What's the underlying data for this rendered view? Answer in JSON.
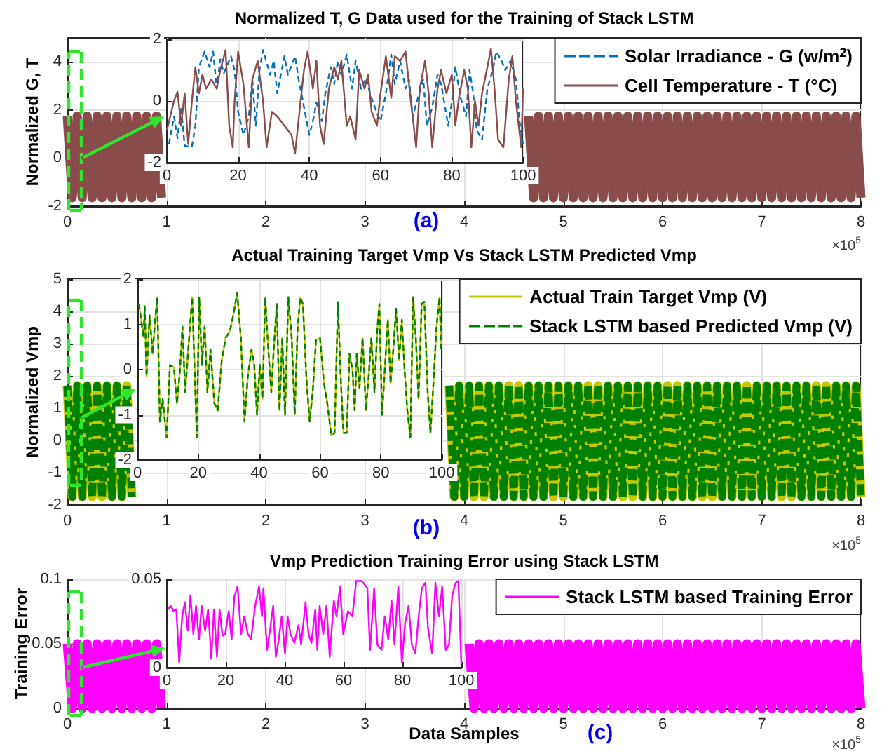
{
  "chart_data": [
    {
      "type": "line",
      "title": "Normalized T, G Data used for the Training of Stack LSTM",
      "ylabel": "Normalized G, T",
      "xlim": [
        0,
        8
      ],
      "xticks": [
        0,
        1,
        2,
        3,
        4,
        5,
        6,
        7,
        8
      ],
      "ylim": [
        -2,
        5
      ],
      "yticks": [
        -2,
        0,
        2,
        4
      ],
      "grid": true,
      "legend": "top right",
      "annotations": [
        "×10$^{5}$",
        "(a)"
      ],
      "x": [
        0,
        0.05,
        0.1,
        0.15,
        0.2,
        0.25,
        0.3,
        0.35,
        0.4,
        0.45,
        0.5,
        0.55,
        0.6,
        0.65,
        0.7,
        0.75,
        0.8,
        0.85,
        0.9,
        0.95,
        2.8,
        4.65,
        4.7,
        4.75,
        4.8,
        4.85,
        4.9,
        4.95,
        5,
        5.05,
        5.1,
        5.15,
        5.2,
        5.25,
        5.3,
        5.35,
        5.4,
        5.45,
        5.5,
        5.55,
        5.6,
        5.65,
        5.7,
        5.75,
        5.8,
        5.85,
        5.9,
        5.95,
        6,
        6.05,
        6.1,
        6.15,
        6.2,
        6.25,
        6.3,
        6.35,
        6.4,
        6.45,
        6.5,
        6.55,
        6.6,
        6.65,
        6.7,
        6.75,
        6.8,
        6.85,
        6.9,
        6.95,
        7,
        7.05,
        7.1,
        7.15,
        7.2,
        7.25,
        7.3,
        7.35,
        7.4,
        7.45,
        7.5,
        7.55,
        7.6,
        7.65,
        7.7,
        7.75,
        7.8,
        7.85,
        7.9,
        7.95,
        8
      ],
      "series": [
        {
          "name": "Solar Irradiance - G (w/m$^{2}$)",
          "color": "#0072bd",
          "line_style": "dashed",
          "values": [
            null,
            null,
            null,
            null,
            null,
            null,
            null,
            null,
            null,
            null,
            null,
            null,
            null,
            null,
            null,
            null,
            null,
            null,
            null,
            null,
            null,
            null,
            null,
            null,
            null,
            null,
            null,
            null,
            null,
            null,
            null,
            null,
            null,
            null,
            null,
            null,
            null,
            null,
            null,
            null,
            null,
            null,
            null,
            null,
            null,
            null,
            null,
            null,
            null,
            null,
            null,
            null,
            null,
            null,
            null,
            null,
            null,
            null,
            null,
            null,
            null,
            null,
            null,
            null,
            null,
            null,
            null,
            null,
            null,
            null,
            null,
            null,
            null,
            null,
            null,
            null,
            null,
            null,
            null,
            null,
            null,
            null,
            null,
            null,
            null,
            null,
            null,
            null,
            null
          ]
        },
        {
          "name": "Cell Temperature - T (°C)",
          "color": "#8a4b4b",
          "line_style": "solid",
          "values": [
            1.75,
            -1.65,
            1.75,
            -1.65,
            1.75,
            -1.65,
            1.75,
            -1.65,
            1.75,
            -1.65,
            1.75,
            -1.65,
            1.75,
            -1.65,
            1.75,
            -1.65,
            1.75,
            -1.65,
            1.75,
            -1.65,
            null,
            1.75,
            -1.65,
            1.75,
            -1.65,
            1.75,
            -1.65,
            1.75,
            -1.65,
            1.75,
            -1.65,
            1.75,
            -1.65,
            1.75,
            -1.65,
            1.75,
            -1.65,
            1.75,
            -1.65,
            1.75,
            -1.65,
            1.75,
            -1.65,
            1.75,
            -1.65,
            1.75,
            -1.65,
            1.75,
            -1.65,
            1.75,
            -1.65,
            1.75,
            -1.65,
            1.75,
            -1.65,
            1.75,
            -1.65,
            1.75,
            -1.65,
            1.75,
            -1.65,
            1.75,
            -1.65,
            1.75,
            -1.65,
            1.75,
            -1.65,
            1.75,
            -1.65,
            1.75,
            -1.65,
            1.75,
            -1.65,
            1.75,
            -1.65,
            1.75,
            -1.65,
            1.75,
            -1.65,
            1.75,
            -1.65,
            1.75,
            -1.65,
            1.75,
            -1.65,
            1.75,
            -1.65,
            1.75,
            -1.65
          ]
        }
      ]
    },
    {
      "type": "line",
      "xlim": [
        0,
        100
      ],
      "xticks": [
        0,
        20,
        40,
        60,
        80,
        100
      ],
      "ylim": [
        -2,
        2
      ],
      "yticks": [
        -2,
        0,
        2
      ],
      "grid": true,
      "series": [
        {
          "color": "#0072bd",
          "line_style": "dashed",
          "x": [
            0.6,
            2,
            3,
            4,
            5,
            7,
            8,
            9,
            10.6,
            12,
            13,
            14,
            15,
            16,
            18,
            19,
            20,
            21.5,
            23,
            24,
            25,
            26,
            27,
            29,
            30,
            31,
            32,
            33,
            34,
            36,
            37,
            39,
            40,
            41,
            42,
            43.5,
            44.5,
            46,
            47,
            48,
            49,
            50.5,
            52,
            53,
            54.5,
            56,
            57,
            59,
            60,
            61.5,
            63,
            64,
            65.5,
            67,
            68,
            69,
            70.5,
            72,
            73,
            74.5,
            76,
            77,
            79,
            80,
            81,
            82.5,
            84,
            85,
            86,
            87,
            88.5,
            90,
            91.5,
            92.5,
            94,
            95,
            96.5,
            98,
            99,
            100
          ],
          "values": [
            -1.4,
            -0.5,
            -1.2,
            -0.2,
            -1.45,
            -1.5,
            -0.8,
            1.1,
            1.6,
            1.1,
            1.6,
            0.4,
            1.35,
            0.9,
            1.45,
            1.0,
            -0.35,
            -1.1,
            -0.5,
            0.7,
            -0.8,
            1.0,
            1.65,
            0.85,
            1.3,
            0.25,
            0.85,
            1.45,
            0.85,
            1.45,
            0.7,
            -0.5,
            -1.1,
            -0.65,
            -0.05,
            -0.65,
            0.25,
            1.1,
            0.55,
            1.3,
            0.85,
            1.5,
            0.4,
            1.3,
            0.4,
            0.75,
            0.25,
            -0.4,
            -0.65,
            0.25,
            1.5,
            0.55,
            1.3,
            0.4,
            0.7,
            -0.5,
            0.1,
            0.7,
            -0.8,
            -0.2,
            0.85,
            0.55,
            -0.8,
            -0.05,
            1.1,
            0.1,
            -0.5,
            1.0,
            0.25,
            -0.95,
            -1.25,
            0.4,
            1.0,
            1.6,
            1.3,
            1.0,
            1.3,
            0.7,
            -0.65,
            -1.4
          ]
        },
        {
          "color": "#8a4b4b",
          "line_style": "solid",
          "x": [
            0,
            2,
            3,
            4,
            5,
            6,
            7,
            8,
            9,
            10,
            11,
            12.5,
            14,
            15,
            16.5,
            17.5,
            18.5,
            19,
            20,
            21.5,
            23,
            24,
            25.5,
            27,
            28,
            29.5,
            31,
            33,
            35,
            36,
            37.5,
            38.5,
            39.5,
            41,
            42,
            43,
            44,
            45.5,
            47,
            48,
            49,
            50.5,
            51.5,
            53,
            54,
            55.5,
            56.5,
            57.5,
            59,
            60,
            61.5,
            63,
            64,
            65.5,
            67,
            68.5,
            70,
            71,
            72.5,
            73.5,
            74.5,
            76,
            77,
            78.5,
            80,
            81,
            82,
            83.5,
            84.5,
            85.5,
            86.5,
            87.5,
            88.5,
            90,
            91,
            92,
            93,
            94.5,
            96,
            97,
            98,
            99.5,
            100
          ],
          "values": [
            -0.95,
            0,
            0.3,
            -0.8,
            0.25,
            -1.4,
            -0.05,
            1.1,
            0.25,
            0.85,
            0.4,
            0.7,
            0.4,
            1.0,
            1.65,
            -0.8,
            -1.5,
            -0.05,
            1.6,
            0.55,
            -1.5,
            0.7,
            1.3,
            0,
            -1.5,
            -0.35,
            -0.5,
            -0.8,
            -1.1,
            -1.7,
            -0.05,
            1.0,
            1.6,
            0.4,
            1.3,
            -0.8,
            -1.4,
            0.4,
            1.1,
            0.7,
            1.3,
            -0.8,
            -0.5,
            -1.25,
            1.0,
            0.4,
            0.85,
            -0.35,
            -0.8,
            0.25,
            1.45,
            0.1,
            1.45,
            1.3,
            1.6,
            0,
            -1.5,
            0.4,
            1.3,
            0.25,
            -1.5,
            0.4,
            1.0,
            0.25,
            0.85,
            -0.8,
            0.1,
            1.0,
            0.4,
            -1.5,
            0,
            -0.8,
            0.25,
            1.1,
            1.7,
            0.4,
            -1.25,
            -1.5,
            0.7,
            1.45,
            0,
            -1.5,
            0.4
          ]
        }
      ]
    },
    {
      "type": "line",
      "title": "Actual Training Target Vmp Vs Stack LSTM Predicted Vmp",
      "ylabel": "Normalized Vmp",
      "xlim": [
        0,
        8
      ],
      "xticks": [
        0,
        1,
        2,
        3,
        4,
        5,
        6,
        7,
        8
      ],
      "ylim": [
        -2,
        5
      ],
      "yticks": [
        -2,
        -1,
        0,
        1,
        2,
        3,
        4,
        5
      ],
      "grid": true,
      "legend": "top right",
      "annotations": [
        "×10$^{5}$",
        "(b)"
      ],
      "x": [
        0,
        0.05,
        0.1,
        0.15,
        0.2,
        0.25,
        0.3,
        0.35,
        0.4,
        0.45,
        0.5,
        0.55,
        0.6,
        0.65,
        2.2,
        3.85,
        3.9,
        3.95,
        4,
        4.05,
        4.1,
        4.15,
        4.2,
        4.25,
        4.3,
        4.35,
        4.4,
        4.45,
        4.5,
        4.55,
        4.6,
        4.65,
        4.7,
        4.75,
        4.8,
        4.85,
        4.9,
        4.95,
        5,
        5.05,
        5.1,
        5.15,
        5.2,
        5.25,
        5.3,
        5.35,
        5.4,
        5.45,
        5.5,
        5.55,
        5.6,
        5.65,
        5.7,
        5.75,
        5.8,
        5.85,
        5.9,
        5.95,
        6,
        6.05,
        6.1,
        6.15,
        6.2,
        6.25,
        6.3,
        6.35,
        6.4,
        6.45,
        6.5,
        6.55,
        6.6,
        6.65,
        6.7,
        6.75,
        6.8,
        6.85,
        6.9,
        6.95,
        7,
        7.05,
        7.1,
        7.15,
        7.2,
        7.25,
        7.3,
        7.35,
        7.4,
        7.45,
        7.5,
        7.55,
        7.6,
        7.65,
        7.7,
        7.75,
        7.8,
        7.85,
        7.9,
        7.95,
        8
      ],
      "series": [
        {
          "name": "Actual Train Target Vmp (V)",
          "color": "#c8c800",
          "line_style": "solid",
          "values": [
            1.7,
            -1.75,
            1.7,
            -1.75,
            1.7,
            -1.75,
            1.7,
            -1.75,
            1.7,
            -1.75,
            1.7,
            -1.75,
            1.7,
            -1.75,
            null,
            1.7,
            -1.75,
            1.7,
            -1.75,
            1.7,
            -1.75,
            1.7,
            -1.75,
            1.7,
            -1.75,
            1.7,
            -1.75,
            1.7,
            -1.75,
            1.7,
            -1.75,
            1.7,
            -1.75,
            1.7,
            -1.75,
            1.7,
            -1.75,
            1.7,
            -1.75,
            1.7,
            -1.75,
            1.7,
            -1.75,
            1.7,
            -1.75,
            1.7,
            -1.75,
            1.7,
            -1.75,
            1.7,
            -1.75,
            1.7,
            -1.75,
            1.7,
            -1.75,
            1.7,
            -1.75,
            1.7,
            -1.75,
            1.7,
            -1.75,
            1.7,
            -1.75,
            1.7,
            -1.75,
            1.7,
            -1.75,
            1.7,
            -1.75,
            1.7,
            -1.75,
            1.7,
            -1.75,
            1.7,
            -1.75,
            1.7,
            -1.75,
            1.7,
            -1.75,
            1.7,
            -1.75,
            1.7,
            -1.75,
            1.7,
            -1.75,
            1.7,
            -1.75,
            1.7,
            -1.75,
            1.7,
            -1.75,
            1.7,
            -1.75,
            1.7,
            -1.75,
            1.7,
            -1.75,
            1.7,
            -1.75
          ]
        },
        {
          "name": "Stack LSTM based Predicted Vmp (V)",
          "color": "#008000",
          "line_style": "dashed",
          "values": [
            1.7,
            -1.75,
            1.7,
            -1.75,
            1.7,
            -1.75,
            1.7,
            -1.75,
            1.7,
            -1.75,
            1.7,
            -1.75,
            1.7,
            -1.75,
            null,
            1.7,
            -1.75,
            1.7,
            -1.75,
            1.7,
            -1.75,
            1.7,
            -1.75,
            1.7,
            -1.75,
            1.7,
            -1.75,
            1.7,
            -1.75,
            1.7,
            -1.75,
            1.7,
            -1.75,
            1.7,
            -1.75,
            1.7,
            -1.75,
            1.7,
            -1.75,
            1.7,
            -1.75,
            1.7,
            -1.75,
            1.7,
            -1.75,
            1.7,
            -1.75,
            1.7,
            -1.75,
            1.7,
            -1.75,
            1.7,
            -1.75,
            1.7,
            -1.75,
            1.7,
            -1.75,
            1.7,
            -1.75,
            1.7,
            -1.75,
            1.7,
            -1.75,
            1.7,
            -1.75,
            1.7,
            -1.75,
            1.7,
            -1.75,
            1.7,
            -1.75,
            1.7,
            -1.75,
            1.7,
            -1.75,
            1.7,
            -1.75,
            1.7,
            -1.75,
            1.7,
            -1.75,
            1.7,
            -1.75,
            1.7,
            -1.75,
            1.7,
            -1.75,
            1.7,
            -1.75,
            1.7,
            -1.75,
            1.7,
            -1.75,
            1.7,
            -1.75,
            1.7,
            -1.75,
            1.7,
            -1.75
          ]
        }
      ]
    },
    {
      "type": "line",
      "xlim": [
        0,
        100
      ],
      "xticks": [
        0,
        20,
        40,
        60,
        80,
        100
      ],
      "ylim": [
        -2,
        2
      ],
      "yticks": [
        -2,
        -1,
        0,
        1,
        2
      ],
      "grid": true,
      "x": [
        0.5,
        2,
        2.4,
        3,
        4,
        5,
        5.7,
        6.5,
        7.4,
        8.3,
        9.6,
        10.7,
        12,
        13,
        14,
        14.8,
        15.7,
        17,
        18,
        19,
        19.5,
        20.3,
        21.2,
        22.1,
        23,
        24,
        25.3,
        26.4,
        27.7,
        29,
        30.4,
        31.5,
        32.8,
        34,
        35.2,
        36.3,
        37.5,
        38.4,
        39.3,
        40.2,
        41.1,
        42,
        43,
        44,
        44.8,
        45.8,
        46.7,
        47.6,
        48.5,
        49.6,
        50.7,
        51.7,
        52.6,
        53.5,
        54.4,
        55.5,
        56.6,
        57.6,
        58.7,
        60,
        61.3,
        62.4,
        63.7,
        64.8,
        65.9,
        66.8,
        67.7,
        68.8,
        69.7,
        70.7,
        71.4,
        72.1,
        73,
        74,
        75.1,
        76,
        76.9,
        77.9,
        78.8,
        79.5,
        80.4,
        81.4,
        82.3,
        83.2,
        84.1,
        85,
        86,
        86.9,
        87.8,
        88.7,
        89.7,
        90.6,
        91.5,
        92.4,
        93.4,
        94.3,
        95.4,
        96.3,
        97.2,
        98.3,
        99.3,
        99.8
      ],
      "series": [
        {
          "color": "#c8c800",
          "line_style": "solid",
          "values": [
            1.46,
            0.72,
            1.4,
            -0.15,
            1.2,
            0.35,
            1.0,
            1.6,
            -1.15,
            -0.65,
            -1.5,
            0.1,
            0.05,
            -0.75,
            0,
            0.95,
            -0.5,
            0.7,
            1.6,
            -0.4,
            -1.5,
            1.6,
            0.1,
            0.95,
            -0.5,
            0.45,
            -0.75,
            -0.9,
            0.2,
            0.7,
            0.85,
            1.2,
            1.7,
            0.7,
            -1.15,
            -0.15,
            0.45,
            0.1,
            -1.0,
            0.1,
            -0.65,
            1.6,
            0.45,
            -0.5,
            0.45,
            1.45,
            -0.9,
            0.7,
            -1.0,
            1.6,
            0.7,
            -1.0,
            0.85,
            1.6,
            1.45,
            -0.15,
            -1.15,
            -0.5,
            0.65,
            0.7,
            -0.3,
            -0.75,
            -1.45,
            -1.4,
            1.5,
            -0.15,
            -1.4,
            -1.4,
            0.35,
            0,
            -0.9,
            0.35,
            -0.4,
            0.7,
            -0.9,
            -0.15,
            0.7,
            -0.5,
            0.85,
            1.45,
            -1.0,
            0.1,
            1.1,
            -0.3,
            0.45,
            1.35,
            0.2,
            1.1,
            0,
            -0.9,
            -1.5,
            1.6,
            0.7,
            -0.65,
            1.45,
            1.5,
            -0.5,
            -1.4,
            -0.4,
            0.95,
            1.6,
            0.45
          ]
        },
        {
          "color": "#008000",
          "line_style": "dashed",
          "values": [
            1.46,
            0.72,
            1.4,
            -0.15,
            1.2,
            0.35,
            1.0,
            1.6,
            -1.15,
            -0.65,
            -1.5,
            0.1,
            0.05,
            -0.75,
            0,
            0.95,
            -0.5,
            0.7,
            1.6,
            -0.4,
            -1.5,
            1.6,
            0.1,
            0.95,
            -0.5,
            0.45,
            -0.75,
            -0.9,
            0.2,
            0.7,
            0.85,
            1.2,
            1.7,
            0.7,
            -1.15,
            -0.15,
            0.45,
            0.1,
            -1.0,
            0.1,
            -0.65,
            1.6,
            0.45,
            -0.5,
            0.45,
            1.45,
            -0.9,
            0.7,
            -1.0,
            1.6,
            0.7,
            -1.0,
            0.85,
            1.6,
            1.45,
            -0.15,
            -1.15,
            -0.5,
            0.65,
            0.7,
            -0.3,
            -0.75,
            -1.45,
            -1.4,
            1.5,
            -0.15,
            -1.4,
            -1.4,
            0.35,
            0,
            -0.9,
            0.35,
            -0.4,
            0.7,
            -0.9,
            -0.15,
            0.7,
            -0.5,
            0.85,
            1.45,
            -1.0,
            0.1,
            1.1,
            -0.3,
            0.45,
            1.35,
            0.2,
            1.1,
            0,
            -0.9,
            -1.5,
            1.6,
            0.7,
            -0.65,
            1.45,
            1.5,
            -0.5,
            -1.4,
            -0.4,
            0.95,
            1.6,
            0.45
          ]
        }
      ]
    },
    {
      "type": "line",
      "title": "Vmp Prediction Training Error using Stack LSTM",
      "xlabel": "Data Samples",
      "ylabel": "Training Error",
      "xlim": [
        0,
        8
      ],
      "xticks": [
        0,
        1,
        2,
        3,
        4,
        5,
        6,
        7,
        8
      ],
      "ylim": [
        0,
        0.1
      ],
      "yticks": [
        0,
        0.05,
        0.1
      ],
      "grid": true,
      "legend": "top right",
      "annotations": [
        "×10$^{5}$",
        "(c)"
      ],
      "x": [
        0,
        0.05,
        0.1,
        0.15,
        0.2,
        0.25,
        0.3,
        0.35,
        0.4,
        0.45,
        0.5,
        0.55,
        0.6,
        0.65,
        0.7,
        0.75,
        0.8,
        0.85,
        0.9,
        0.95,
        2.5,
        4.05,
        4.1,
        4.15,
        4.2,
        4.25,
        4.3,
        4.35,
        4.4,
        4.45,
        4.5,
        4.55,
        4.6,
        4.65,
        4.7,
        4.75,
        4.8,
        4.85,
        4.9,
        4.95,
        5,
        5.05,
        5.1,
        5.15,
        5.2,
        5.25,
        5.3,
        5.35,
        5.4,
        5.45,
        5.5,
        5.55,
        5.6,
        5.65,
        5.7,
        5.75,
        5.8,
        5.85,
        5.9,
        5.95,
        6,
        6.05,
        6.1,
        6.15,
        6.2,
        6.25,
        6.3,
        6.35,
        6.4,
        6.45,
        6.5,
        6.55,
        6.6,
        6.65,
        6.7,
        6.75,
        6.8,
        6.85,
        6.9,
        6.95,
        7,
        7.05,
        7.1,
        7.15,
        7.2,
        7.25,
        7.3,
        7.35,
        7.4,
        7.45,
        7.5,
        7.55,
        7.6,
        7.65,
        7.7,
        7.75,
        7.8,
        7.85,
        7.9,
        7.95,
        8
      ],
      "series": [
        {
          "name": "Stack LSTM based Training Error",
          "color": "#ff00ff",
          "line_style": "solid",
          "values": [
            0.05,
            0,
            0.05,
            0,
            0.05,
            0,
            0.05,
            0,
            0.05,
            0,
            0.05,
            0,
            0.05,
            0,
            0.05,
            0,
            0.05,
            0,
            0.05,
            0,
            null,
            0.05,
            0,
            0.05,
            0,
            0.05,
            0,
            0.05,
            0,
            0.05,
            0,
            0.05,
            0,
            0.05,
            0,
            0.05,
            0,
            0.05,
            0,
            0.05,
            0,
            0.05,
            0,
            0.05,
            0,
            0.05,
            0,
            0.05,
            0,
            0.05,
            0,
            0.05,
            0,
            0.05,
            0,
            0.05,
            0,
            0.05,
            0,
            0.05,
            0,
            0.05,
            0,
            0.05,
            0,
            0.05,
            0,
            0.05,
            0,
            0.05,
            0,
            0.05,
            0,
            0.05,
            0,
            0.05,
            0,
            0.05,
            0,
            0.05,
            0,
            0.05,
            0,
            0.05,
            0,
            0.05,
            0,
            0.05,
            0,
            0.05,
            0,
            0.05,
            0,
            0.05,
            0,
            0.05,
            0,
            0.05,
            0,
            0.05,
            0
          ]
        }
      ]
    },
    {
      "type": "line",
      "xlim": [
        0,
        100
      ],
      "xticks": [
        0,
        20,
        40,
        60,
        80,
        100
      ],
      "ylim": [
        0,
        0.05
      ],
      "yticks": [
        0,
        0.05
      ],
      "grid": true,
      "x": [
        0.4,
        1.3,
        2.3,
        3.2,
        4.2,
        5.2,
        6.1,
        7.1,
        8,
        9,
        9.9,
        10.9,
        11.8,
        13,
        14,
        15.1,
        16,
        17,
        17.9,
        18.9,
        19.8,
        21,
        22,
        22.9,
        24,
        25.2,
        26.3,
        27.5,
        28.6,
        30,
        31.3,
        32.3,
        32.8,
        34,
        35.1,
        36.1,
        37,
        38,
        39,
        40.1,
        41,
        42,
        43.3,
        44.7,
        45.6,
        47.1,
        48.1,
        49.1,
        50.4,
        51.1,
        51.9,
        53.1,
        54.2,
        55.3,
        56.7,
        57.6,
        58.8,
        59.9,
        61.5,
        63,
        64.3,
        66.2,
        68.1,
        69,
        70.4,
        71.5,
        72.9,
        74,
        75.2,
        76.3,
        77.3,
        78.6,
        79.8,
        80.9,
        82.1,
        83.2,
        84.4,
        85.5,
        86.6,
        87.8,
        88.7,
        90.1,
        91.2,
        92.4,
        93.5,
        94.7,
        95.8,
        96.9,
        98.1,
        99,
        100
      ],
      "series": [
        {
          "color": "#ff00ff",
          "line_style": "solid",
          "values": [
            0.033,
            0.035,
            0.032,
            0.033,
            0.003,
            0.029,
            0.037,
            0.021,
            0.041,
            0.019,
            0.035,
            0.016,
            0.035,
            0.021,
            0.033,
            0.005,
            0.033,
            0.006,
            0.033,
            0.018,
            0.019,
            0.032,
            0.016,
            0.04,
            0.046,
            0.019,
            0.029,
            0.019,
            0.016,
            0.035,
            0.046,
            0.029,
            0.045,
            0.01,
            0.022,
            0.035,
            0.006,
            0.016,
            0.029,
            0.008,
            0.029,
            0.019,
            0.014,
            0.024,
            0.013,
            0.037,
            0.019,
            0.014,
            0.033,
            0.01,
            0.035,
            0.019,
            0.035,
            0.006,
            0.038,
            0.029,
            0.046,
            0.019,
            0.032,
            0.029,
            0.049,
            0.049,
            0.045,
            0.01,
            0.045,
            0.013,
            0.01,
            0.029,
            0.016,
            0.038,
            0.013,
            0.046,
            0.003,
            0.025,
            0.035,
            0.013,
            0.008,
            0.029,
            0.045,
            0.048,
            0.022,
            0.008,
            0.048,
            0.029,
            0.046,
            0.01,
            0.013,
            0.041,
            0.048,
            0.049,
            0.002
          ]
        }
      ]
    }
  ]
}
